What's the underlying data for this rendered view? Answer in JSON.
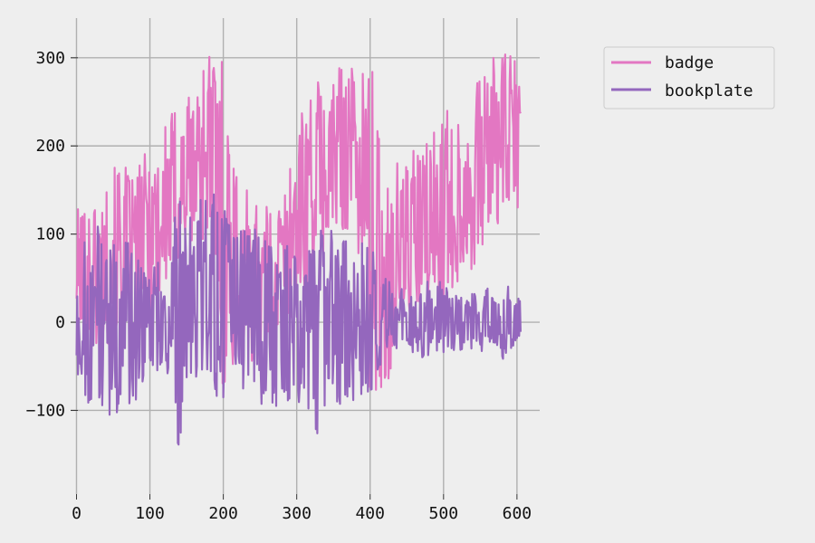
{
  "chart_data": {
    "type": "line",
    "title": "",
    "xlabel": "",
    "ylabel": "",
    "xlim": [
      -8,
      631
    ],
    "ylim": [
      -195,
      345
    ],
    "xticks": [
      0,
      100,
      200,
      300,
      400,
      500,
      600
    ],
    "yticks": [
      -100,
      0,
      100,
      200,
      300
    ],
    "xtick_labels": [
      "0",
      "100",
      "200",
      "300",
      "400",
      "500",
      "600"
    ],
    "ytick_labels": [
      "−100",
      "0",
      "100",
      "200",
      "300"
    ],
    "grid": true,
    "legend_position": "upper-right-outside",
    "background": "#eeeeee",
    "series": [
      {
        "name": "badge",
        "color": "#e377c2",
        "n_points": 606,
        "envelope": [
          [
            0,
            -5,
            130
          ],
          [
            20,
            -40,
            140
          ],
          [
            40,
            -30,
            155
          ],
          [
            60,
            -20,
            190
          ],
          [
            80,
            -10,
            165
          ],
          [
            100,
            0,
            210
          ],
          [
            120,
            20,
            230
          ],
          [
            140,
            60,
            255
          ],
          [
            160,
            80,
            270
          ],
          [
            180,
            100,
            320
          ],
          [
            200,
            -90,
            315
          ],
          [
            220,
            -40,
            150
          ],
          [
            240,
            -50,
            150
          ],
          [
            260,
            -40,
            130
          ],
          [
            280,
            -30,
            150
          ],
          [
            300,
            20,
            220
          ],
          [
            320,
            40,
            275
          ],
          [
            340,
            60,
            285
          ],
          [
            360,
            100,
            295
          ],
          [
            380,
            110,
            300
          ],
          [
            400,
            -95,
            310
          ],
          [
            420,
            -80,
            160
          ],
          [
            440,
            -20,
            190
          ],
          [
            460,
            -10,
            200
          ],
          [
            480,
            0,
            210
          ],
          [
            500,
            20,
            240
          ],
          [
            520,
            40,
            245
          ],
          [
            540,
            60,
            260
          ],
          [
            560,
            90,
            300
          ],
          [
            580,
            120,
            305
          ],
          [
            605,
            120,
            300
          ]
        ]
      },
      {
        "name": "bookplate",
        "color": "#9467bd",
        "n_points": 606,
        "envelope": [
          [
            0,
            -80,
            60
          ],
          [
            20,
            -95,
            135
          ],
          [
            40,
            -110,
            85
          ],
          [
            60,
            -100,
            100
          ],
          [
            80,
            -95,
            85
          ],
          [
            100,
            -60,
            70
          ],
          [
            120,
            -55,
            70
          ],
          [
            140,
            -150,
            155
          ],
          [
            160,
            -80,
            120
          ],
          [
            180,
            -60,
            165
          ],
          [
            200,
            -105,
            130
          ],
          [
            220,
            -70,
            110
          ],
          [
            240,
            -85,
            110
          ],
          [
            260,
            -100,
            105
          ],
          [
            280,
            -100,
            100
          ],
          [
            300,
            -80,
            80
          ],
          [
            320,
            -175,
            110
          ],
          [
            340,
            -90,
            105
          ],
          [
            360,
            -100,
            115
          ],
          [
            380,
            -90,
            90
          ],
          [
            400,
            -100,
            90
          ],
          [
            420,
            -30,
            60
          ],
          [
            440,
            -30,
            40
          ],
          [
            460,
            -40,
            40
          ],
          [
            480,
            -40,
            50
          ],
          [
            500,
            -35,
            45
          ],
          [
            520,
            -35,
            35
          ],
          [
            540,
            -30,
            35
          ],
          [
            560,
            -40,
            45
          ],
          [
            580,
            -50,
            50
          ],
          [
            605,
            -20,
            25
          ]
        ]
      }
    ]
  }
}
